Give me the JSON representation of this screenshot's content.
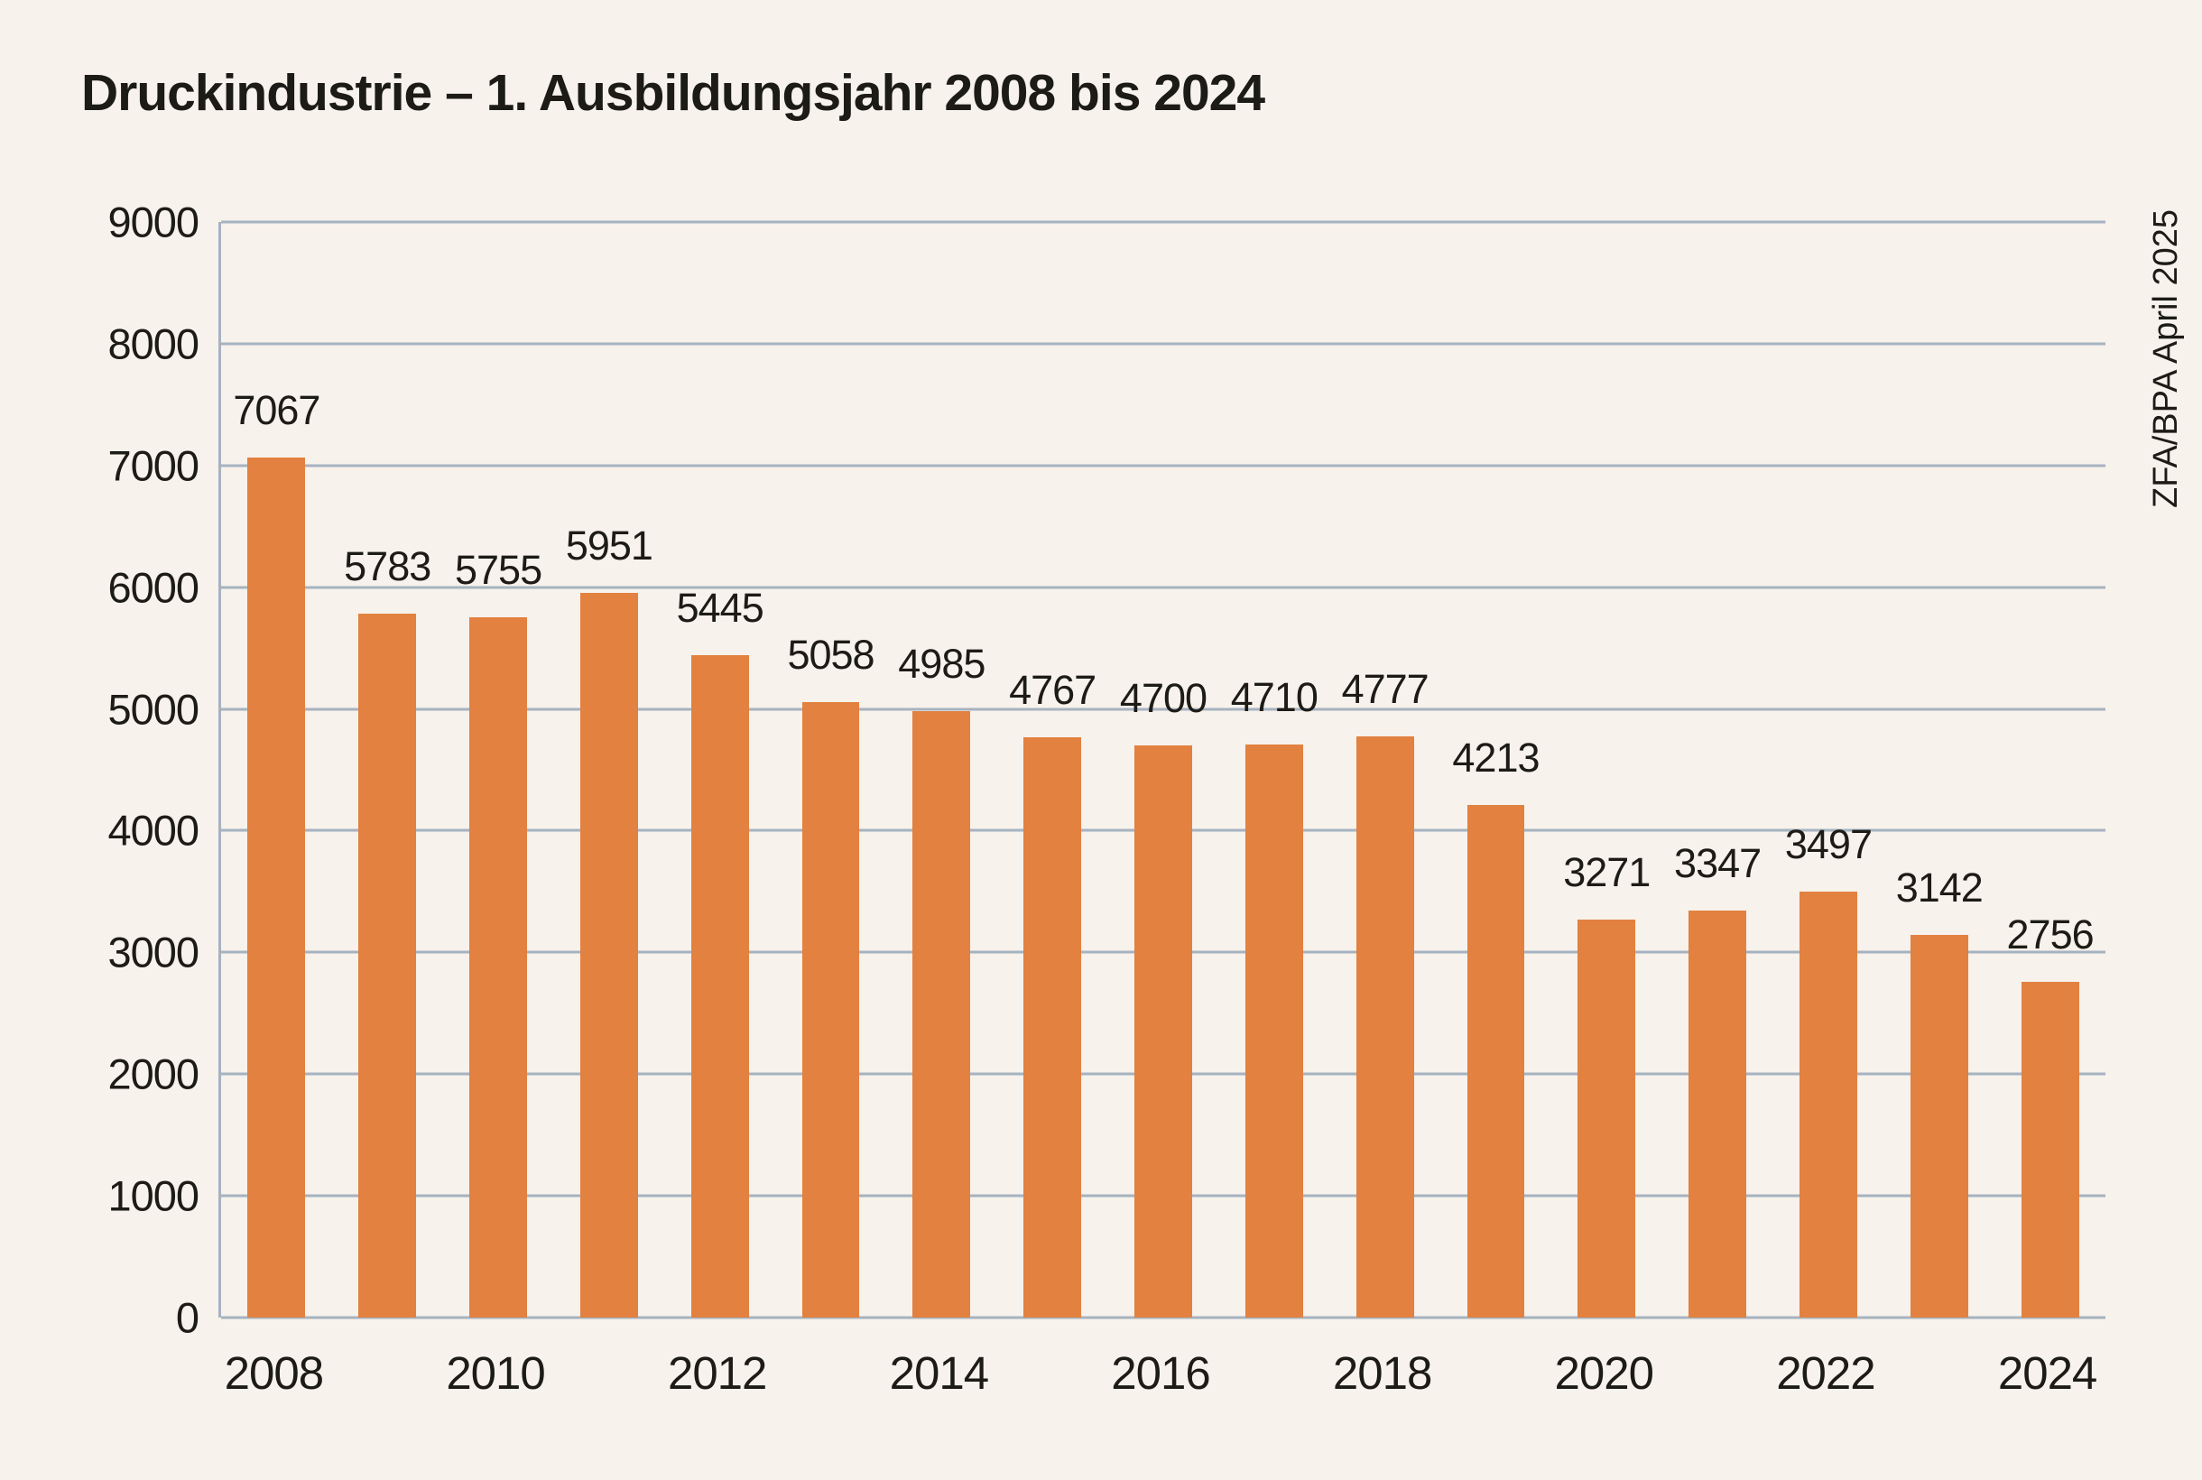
{
  "title": "Druckindustrie – 1. Ausbildungsjahr 2008 bis 2024",
  "source_note": "ZFA/BPA April 2025",
  "colors": {
    "background": "#f7f2eb",
    "bar": "#e28140",
    "gridline": "#a6b3c0",
    "text": "#1d1b16"
  },
  "chart_data": {
    "type": "bar",
    "title": "Druckindustrie – 1. Ausbildungsjahr 2008 bis 2024",
    "annotation": "ZFA/BPA April 2025",
    "categories": [
      2008,
      2009,
      2010,
      2011,
      2012,
      2013,
      2014,
      2015,
      2016,
      2017,
      2018,
      2019,
      2020,
      2021,
      2022,
      2023,
      2024
    ],
    "values": [
      7067,
      5783,
      5755,
      5951,
      5445,
      5058,
      4985,
      4767,
      4700,
      4710,
      4777,
      4213,
      3271,
      3347,
      3497,
      3142,
      2756
    ],
    "xtick_labels": [
      "2008",
      "2010",
      "2012",
      "2014",
      "2016",
      "2018",
      "2020",
      "2022",
      "2024"
    ],
    "xlabel": "",
    "ylabel": "",
    "ylim": [
      0,
      9000
    ],
    "ytick_step": 1000,
    "grid": true,
    "bar_value_labels": true,
    "legend": false
  }
}
